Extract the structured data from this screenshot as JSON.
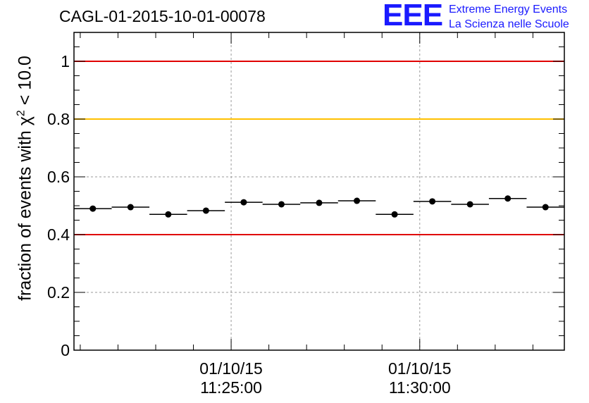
{
  "title": "CAGL-01-2015-10-01-00078",
  "logo": {
    "mark": "EEE",
    "line1": "Extreme Energy Events",
    "line2": "La Scienza nelle Scuole",
    "color": "#1a1aff"
  },
  "chart_data": {
    "type": "scatter",
    "title": "CAGL-01-2015-10-01-00078",
    "ylabel": {
      "prefix": "fraction of events with ",
      "symbol": "χ",
      "superscript": "2",
      "suffix": " < 10.0"
    },
    "xlabel": "",
    "ylim": [
      0,
      1.1
    ],
    "yticks": [
      {
        "value": 0,
        "label": "0"
      },
      {
        "value": 0.2,
        "label": "0.2"
      },
      {
        "value": 0.4,
        "label": "0.4"
      },
      {
        "value": 0.6,
        "label": "0.6"
      },
      {
        "value": 0.8,
        "label": "0.8"
      },
      {
        "value": 1,
        "label": "1"
      }
    ],
    "xlim": [
      "11:20:50",
      "11:33:50"
    ],
    "xticks": [
      {
        "time": "11:25:00",
        "date": "01/10/15",
        "label": "11:25:00"
      },
      {
        "time": "11:30:00",
        "date": "01/10/15",
        "label": "11:30:00"
      }
    ],
    "grid": true,
    "reference_lines": [
      {
        "y": 1.0,
        "color": "#e00000"
      },
      {
        "y": 0.8,
        "color": "#ffc000"
      },
      {
        "y": 0.4,
        "color": "#e00000"
      }
    ],
    "points": [
      {
        "x_start": "11:20:50",
        "x_end": "11:21:50",
        "y": 0.49,
        "err": 0.01
      },
      {
        "x_start": "11:21:50",
        "x_end": "11:22:50",
        "y": 0.495,
        "err": 0.01
      },
      {
        "x_start": "11:22:50",
        "x_end": "11:23:50",
        "y": 0.47,
        "err": 0.01
      },
      {
        "x_start": "11:23:50",
        "x_end": "11:24:50",
        "y": 0.483,
        "err": 0.01
      },
      {
        "x_start": "11:24:50",
        "x_end": "11:25:50",
        "y": 0.512,
        "err": 0.01
      },
      {
        "x_start": "11:25:50",
        "x_end": "11:26:50",
        "y": 0.505,
        "err": 0.01
      },
      {
        "x_start": "11:26:50",
        "x_end": "11:27:50",
        "y": 0.51,
        "err": 0.01
      },
      {
        "x_start": "11:27:50",
        "x_end": "11:28:50",
        "y": 0.517,
        "err": 0.01
      },
      {
        "x_start": "11:28:50",
        "x_end": "11:29:50",
        "y": 0.47,
        "err": 0.01
      },
      {
        "x_start": "11:29:50",
        "x_end": "11:30:50",
        "y": 0.515,
        "err": 0.01
      },
      {
        "x_start": "11:30:50",
        "x_end": "11:31:50",
        "y": 0.505,
        "err": 0.01
      },
      {
        "x_start": "11:31:50",
        "x_end": "11:32:50",
        "y": 0.525,
        "err": 0.01
      },
      {
        "x_start": "11:32:50",
        "x_end": "11:33:50",
        "y": 0.495,
        "err": 0.01
      }
    ]
  }
}
